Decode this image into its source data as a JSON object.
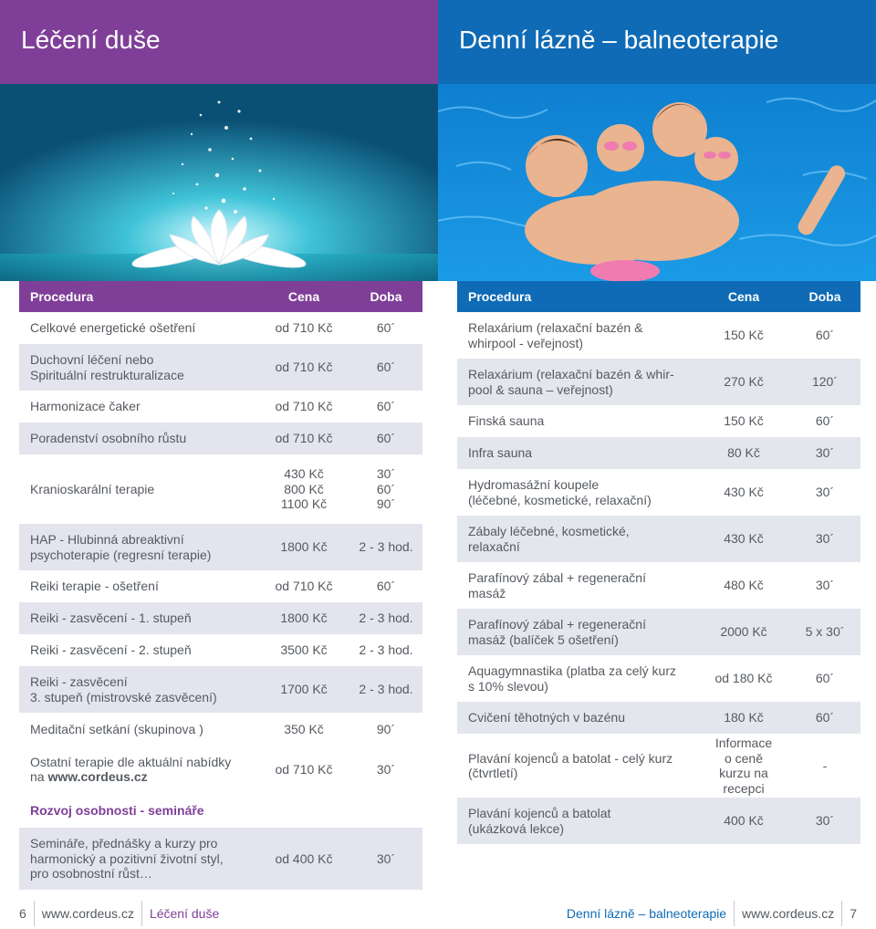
{
  "left": {
    "header_title": "Léčení duše",
    "table_headers": {
      "procedure": "Procedura",
      "price": "Cena",
      "duration": "Doba"
    },
    "rows": [
      {
        "name": "Celkové energetické ošetření",
        "price": "od 710 Kč",
        "duration": "60´"
      },
      {
        "name": "Duchovní léčení nebo\nSpirituální restrukturalizace",
        "price": "od 710 Kč",
        "duration": "60´"
      },
      {
        "name": "Harmonizace čaker",
        "price": "od 710 Kč",
        "duration": "60´"
      },
      {
        "name": "Poradenství osobního růstu",
        "price": "od 710 Kč",
        "duration": "60´"
      },
      {
        "name": "Kranioskarální terapie",
        "price": "430 Kč\n800 Kč\n1100 Kč",
        "duration": "30´\n60´\n90´"
      },
      {
        "name": "HAP - Hlubinná abreaktivní\npsychoterapie (regresní terapie)",
        "price": "1800 Kč",
        "duration": "2 - 3 hod."
      },
      {
        "name": "Reiki terapie - ošetření",
        "price": "od 710 Kč",
        "duration": "60´"
      },
      {
        "name": "Reiki - zasvěcení - 1. stupeň",
        "price": "1800 Kč",
        "duration": "2 - 3 hod."
      },
      {
        "name": "Reiki - zasvěcení - 2. stupeň",
        "price": "3500 Kč",
        "duration": "2 - 3 hod."
      },
      {
        "name": "Reiki - zasvěcení\n3. stupeň (mistrovské zasvěcení)",
        "price": "1700 Kč",
        "duration": "2 - 3 hod."
      },
      {
        "name": "Meditační setkání (skupinova )",
        "price": "350 Kč",
        "duration": "90´"
      }
    ],
    "other_row": {
      "name_prefix": "Ostatní terapie dle aktuální nabídky\nna ",
      "website": "www.cordeus.cz",
      "price": "od 710 Kč",
      "duration": "30´"
    },
    "section_title": "Rozvoj osobnosti - semináře",
    "seminar_row": {
      "name": "Semináře, přednášky a kurzy pro\nharmonický a pozitivní životní styl,\npro osobnostní růst…",
      "price": "od 400 Kč",
      "duration": "30´"
    },
    "footer": {
      "page": "6",
      "site": "www.cordeus.cz",
      "title": "Léčení duše"
    }
  },
  "right": {
    "header_title": "Denní lázně – balneoterapie",
    "table_headers": {
      "procedure": "Procedura",
      "price": "Cena",
      "duration": "Doba"
    },
    "rows": [
      {
        "name": "Relaxárium (relaxační bazén &\nwhirpool - veřejnost)",
        "price": "150 Kč",
        "duration": "60´"
      },
      {
        "name": "Relaxárium (relaxační bazén & whir-\npool & sauna – veřejnost)",
        "price": "270 Kč",
        "duration": "120´"
      },
      {
        "name": "Finská sauna",
        "price": "150 Kč",
        "duration": "60´"
      },
      {
        "name": "Infra sauna",
        "price": "80 Kč",
        "duration": "30´"
      },
      {
        "name": "Hydromasážní koupele\n(léčebné, kosmetické, relaxační)",
        "price": "430 Kč",
        "duration": "30´"
      },
      {
        "name": "Zábaly léčebné, kosmetické,\nrelaxační",
        "price": "430 Kč",
        "duration": "30´"
      },
      {
        "name": "Parafínový zábal + regenerační\nmasáž",
        "price": "480 Kč",
        "duration": "30´"
      },
      {
        "name": "Parafínový zábal + regenerační\nmasáž (balíček 5 ošetření)",
        "price": "2000 Kč",
        "duration": "5 x 30´"
      },
      {
        "name": "Aquagymnastika (platba za celý kurz\ns 10% slevou)",
        "price": "od 180 Kč",
        "duration": "60´"
      },
      {
        "name": "Cvičení těhotných v bazénu",
        "price": "180 Kč",
        "duration": "60´"
      },
      {
        "name": "Plavání kojenců a batolat - celý kurz\n(čtvrtletí)",
        "price": "Informace\no ceně\nkurzu na\nrecepci",
        "duration": "-"
      },
      {
        "name": "Plavání kojenců a batolat\n(ukázková lekce)",
        "price": "400 Kč",
        "duration": "30´"
      }
    ],
    "footer": {
      "title": "Denní lázně – balneoterapie",
      "site": "www.cordeus.cz",
      "page": "7"
    }
  },
  "colors": {
    "purple": "#7f3f98",
    "blue": "#0f6bb5",
    "stripe": "#e4e4ee",
    "text": "#555a60"
  }
}
